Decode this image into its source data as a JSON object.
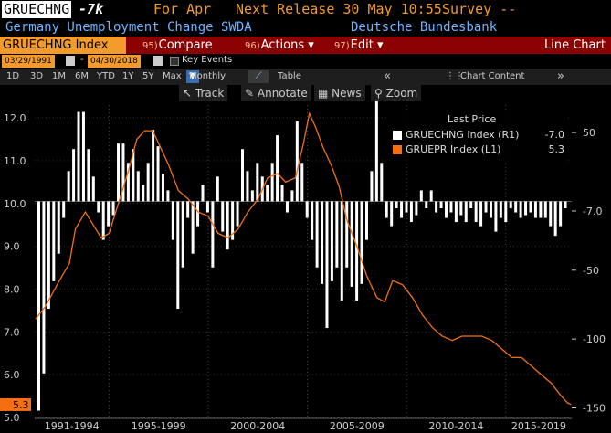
{
  "header": {
    "ticker": "GRUECHNG",
    "value": "-7k",
    "period": "For Apr",
    "next_release": "Next Release 30 May 10:55",
    "survey": "Survey --",
    "description": "Germany Unemployment Change SWDA",
    "source": "Deutsche Bundesbank"
  },
  "toolbar": {
    "index": "GRUECHNG Index",
    "compare": {
      "num": "95)",
      "label": "Compare"
    },
    "actions": {
      "num": "96)",
      "label": "Actions"
    },
    "edit": {
      "num": "97)",
      "label": "Edit"
    },
    "chart_type": "Line Chart"
  },
  "dates": {
    "start": "03/29/1991",
    "end": "04/30/2018",
    "key_events": "Key Events"
  },
  "periods": [
    "1D",
    "3D",
    "1M",
    "6M",
    "YTD",
    "1Y",
    "5Y",
    "Max"
  ],
  "frequency": "Monthly",
  "table_label": "Table",
  "chart_content": "Chart Content",
  "tools": [
    "Track",
    "Annotate",
    "News",
    "Zoom"
  ],
  "legend": {
    "title": "Last Price",
    "items": [
      {
        "name": "GRUECHNG Index  (R1)",
        "value": "-7.0",
        "color": "#ffffff"
      },
      {
        "name": "GRUEPR Index  (L1)",
        "value": "5.3",
        "color": "#f36f12"
      }
    ]
  },
  "chart_data": {
    "type": "bar",
    "x_range": [
      1991.25,
      2018.33
    ],
    "x_labels": [
      "1991-1994",
      "1995-1999",
      "2000-2004",
      "2005-2009",
      "2010-2014",
      "2015-2019"
    ],
    "left_axis": {
      "ticks": [
        "12.0",
        "11.0",
        "10.0",
        "9.0",
        "8.0",
        "7.0",
        "6.0",
        "5.0"
      ],
      "range": [
        5.0,
        12.3
      ],
      "last": "5.3"
    },
    "right_axis": {
      "ticks": [
        "50",
        "-7.0",
        "-50",
        "-100",
        "-150"
      ],
      "range": [
        -157,
        70
      ],
      "last": "-7.0"
    },
    "series": [
      {
        "name": "GRUECHNG Index",
        "type": "bar",
        "axis": "right",
        "values": [
          -152,
          -125,
          -78,
          -58,
          -38,
          -12,
          22,
          38,
          65,
          65,
          38,
          18,
          -8,
          -28,
          -18,
          -10,
          42,
          42,
          28,
          38,
          22,
          12,
          28,
          52,
          40,
          20,
          8,
          -28,
          -78,
          -48,
          -12,
          -38,
          -18,
          12,
          -8,
          -48,
          18,
          -22,
          -35,
          -28,
          -18,
          38,
          22,
          8,
          28,
          18,
          12,
          28,
          48,
          12,
          -8,
          8,
          58,
          28,
          -12,
          -28,
          -48,
          -60,
          -92,
          -58,
          -48,
          -72,
          -48,
          -62,
          -72,
          -60,
          -28,
          22,
          78,
          28,
          -12,
          -18,
          -5,
          -12,
          -8,
          -15,
          -10,
          8,
          -5,
          8,
          -8,
          -5,
          -12,
          -8,
          -15,
          -10,
          -15,
          -5,
          -15,
          -18,
          -8,
          -12,
          -22,
          -12,
          -15,
          -5,
          -8,
          -12,
          -10,
          -8,
          -12,
          -12,
          -12,
          -18,
          -25,
          -18,
          -5
        ]
      },
      {
        "name": "GRUEPR Index",
        "type": "line",
        "axis": "left",
        "points": [
          [
            1991.3,
            7.3
          ],
          [
            1991.8,
            7.6
          ],
          [
            1992.5,
            8.2
          ],
          [
            1993.0,
            8.6
          ],
          [
            1993.3,
            9.4
          ],
          [
            1993.8,
            9.8
          ],
          [
            1994.2,
            9.5
          ],
          [
            1994.6,
            9.2
          ],
          [
            1995.0,
            9.3
          ],
          [
            1995.6,
            10.2
          ],
          [
            1996.0,
            10.8
          ],
          [
            1996.4,
            11.5
          ],
          [
            1996.8,
            11.7
          ],
          [
            1997.2,
            11.7
          ],
          [
            1997.6,
            11.3
          ],
          [
            1998.0,
            10.9
          ],
          [
            1998.5,
            10.3
          ],
          [
            1999.0,
            10.1
          ],
          [
            1999.5,
            9.8
          ],
          [
            2000.0,
            9.7
          ],
          [
            2000.5,
            9.3
          ],
          [
            2001.0,
            9.2
          ],
          [
            2001.5,
            9.4
          ],
          [
            2002.0,
            9.8
          ],
          [
            2002.5,
            10.1
          ],
          [
            2003.0,
            10.6
          ],
          [
            2003.5,
            10.7
          ],
          [
            2003.9,
            10.5
          ],
          [
            2004.4,
            10.6
          ],
          [
            2004.8,
            11.4
          ],
          [
            2005.1,
            12.1
          ],
          [
            2005.4,
            11.8
          ],
          [
            2005.8,
            11.3
          ],
          [
            2006.2,
            10.9
          ],
          [
            2006.6,
            10.4
          ],
          [
            2007.0,
            9.6
          ],
          [
            2007.5,
            9.0
          ],
          [
            2008.0,
            8.3
          ],
          [
            2008.5,
            7.8
          ],
          [
            2008.9,
            7.7
          ],
          [
            2009.3,
            8.2
          ],
          [
            2009.8,
            8.1
          ],
          [
            2010.3,
            7.8
          ],
          [
            2010.8,
            7.4
          ],
          [
            2011.3,
            7.1
          ],
          [
            2011.8,
            6.9
          ],
          [
            2012.3,
            6.8
          ],
          [
            2012.8,
            6.9
          ],
          [
            2013.3,
            6.9
          ],
          [
            2013.8,
            6.9
          ],
          [
            2014.3,
            6.8
          ],
          [
            2014.8,
            6.6
          ],
          [
            2015.3,
            6.4
          ],
          [
            2015.8,
            6.4
          ],
          [
            2016.3,
            6.2
          ],
          [
            2016.8,
            6.0
          ],
          [
            2017.3,
            5.8
          ],
          [
            2017.8,
            5.5
          ],
          [
            2018.1,
            5.35
          ],
          [
            2018.3,
            5.3
          ]
        ]
      }
    ]
  }
}
